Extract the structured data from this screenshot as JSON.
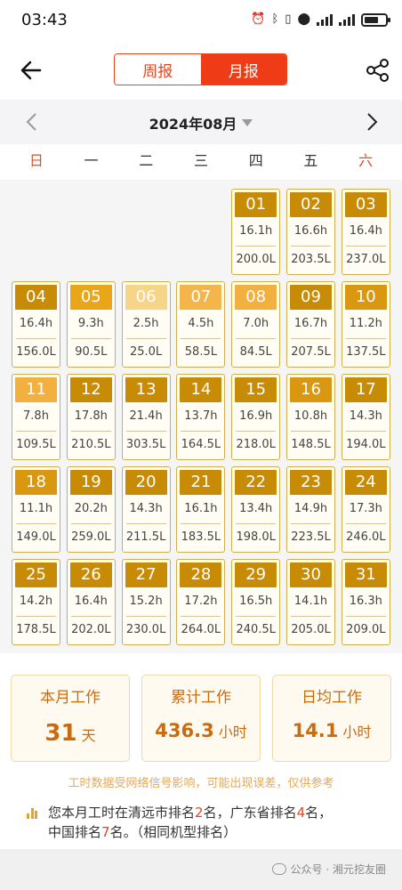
{
  "status_bar": {
    "time": "03:43",
    "battery_icon": "battery-icon",
    "wifi_icon": "wifi-signal-icon",
    "cell_icon": "cell-signal-icon"
  },
  "header": {
    "week_tab": "周报",
    "month_tab": "月报",
    "back_icon": "arrow-left-icon",
    "share_icon": "share-icon"
  },
  "month_nav": {
    "title": "2024年08月"
  },
  "weekdays": [
    "日",
    "一",
    "二",
    "三",
    "四",
    "五",
    "六"
  ],
  "days": [
    {
      "num": "01",
      "hours": "16.1h",
      "fuel": "200.0L",
      "color": "#c88b06"
    },
    {
      "num": "02",
      "hours": "16.6h",
      "fuel": "203.5L",
      "color": "#c88b06"
    },
    {
      "num": "03",
      "hours": "16.4h",
      "fuel": "237.0L",
      "color": "#c88b06"
    },
    {
      "num": "04",
      "hours": "16.4h",
      "fuel": "156.0L",
      "color": "#c88b06"
    },
    {
      "num": "05",
      "hours": "9.3h",
      "fuel": "90.5L",
      "color": "#e9a618"
    },
    {
      "num": "06",
      "hours": "2.5h",
      "fuel": "25.0L",
      "color": "#f6d488"
    },
    {
      "num": "07",
      "hours": "4.5h",
      "fuel": "58.5L",
      "color": "#f4b54a"
    },
    {
      "num": "08",
      "hours": "7.0h",
      "fuel": "84.5L",
      "color": "#f4b03e"
    },
    {
      "num": "09",
      "hours": "16.7h",
      "fuel": "207.5L",
      "color": "#c88b06"
    },
    {
      "num": "10",
      "hours": "11.2h",
      "fuel": "137.5L",
      "color": "#d99810"
    },
    {
      "num": "11",
      "hours": "7.8h",
      "fuel": "109.5L",
      "color": "#f4b03e"
    },
    {
      "num": "12",
      "hours": "17.8h",
      "fuel": "210.5L",
      "color": "#c88b06"
    },
    {
      "num": "13",
      "hours": "21.4h",
      "fuel": "303.5L",
      "color": "#c88b06"
    },
    {
      "num": "14",
      "hours": "13.7h",
      "fuel": "164.5L",
      "color": "#c88b06"
    },
    {
      "num": "15",
      "hours": "16.9h",
      "fuel": "218.0L",
      "color": "#c88b06"
    },
    {
      "num": "16",
      "hours": "10.8h",
      "fuel": "148.5L",
      "color": "#d99810"
    },
    {
      "num": "17",
      "hours": "14.3h",
      "fuel": "194.0L",
      "color": "#c88b06"
    },
    {
      "num": "18",
      "hours": "11.1h",
      "fuel": "149.0L",
      "color": "#d99810"
    },
    {
      "num": "19",
      "hours": "20.2h",
      "fuel": "259.0L",
      "color": "#c88b06"
    },
    {
      "num": "20",
      "hours": "14.3h",
      "fuel": "211.5L",
      "color": "#c88b06"
    },
    {
      "num": "21",
      "hours": "16.1h",
      "fuel": "183.5L",
      "color": "#c88b06"
    },
    {
      "num": "22",
      "hours": "13.4h",
      "fuel": "198.0L",
      "color": "#c88b06"
    },
    {
      "num": "23",
      "hours": "14.9h",
      "fuel": "223.5L",
      "color": "#c88b06"
    },
    {
      "num": "24",
      "hours": "17.3h",
      "fuel": "246.0L",
      "color": "#c88b06"
    },
    {
      "num": "25",
      "hours": "14.2h",
      "fuel": "178.5L",
      "color": "#c88b06"
    },
    {
      "num": "26",
      "hours": "16.4h",
      "fuel": "202.0L",
      "color": "#c88b06"
    },
    {
      "num": "27",
      "hours": "15.2h",
      "fuel": "230.0L",
      "color": "#c88b06"
    },
    {
      "num": "28",
      "hours": "17.2h",
      "fuel": "264.0L",
      "color": "#c88b06"
    },
    {
      "num": "29",
      "hours": "16.5h",
      "fuel": "240.5L",
      "color": "#c88b06"
    },
    {
      "num": "30",
      "hours": "14.1h",
      "fuel": "205.0L",
      "color": "#c88b06"
    },
    {
      "num": "31",
      "hours": "16.3h",
      "fuel": "209.0L",
      "color": "#c88b06"
    }
  ],
  "summary": {
    "month_work": {
      "label": "本月工作",
      "value": "31",
      "unit": "天"
    },
    "total_work": {
      "label": "累计工作",
      "value": "436.3",
      "unit": "小时"
    },
    "daily_avg": {
      "label": "日均工作",
      "value": "14.1",
      "unit": "小时"
    },
    "note": "工时数据受网络信号影响，可能出现误差，仅供参考",
    "rank": {
      "p1": "您本月工时在清远市排名",
      "r1": "2",
      "p2": "名，广东省排名",
      "r2": "4",
      "p3": "名，",
      "p4": "中国排名",
      "r3": "7",
      "p5": "名。（相同机型排名）"
    }
  },
  "watermark": "公众号 · 湘元挖友圈"
}
